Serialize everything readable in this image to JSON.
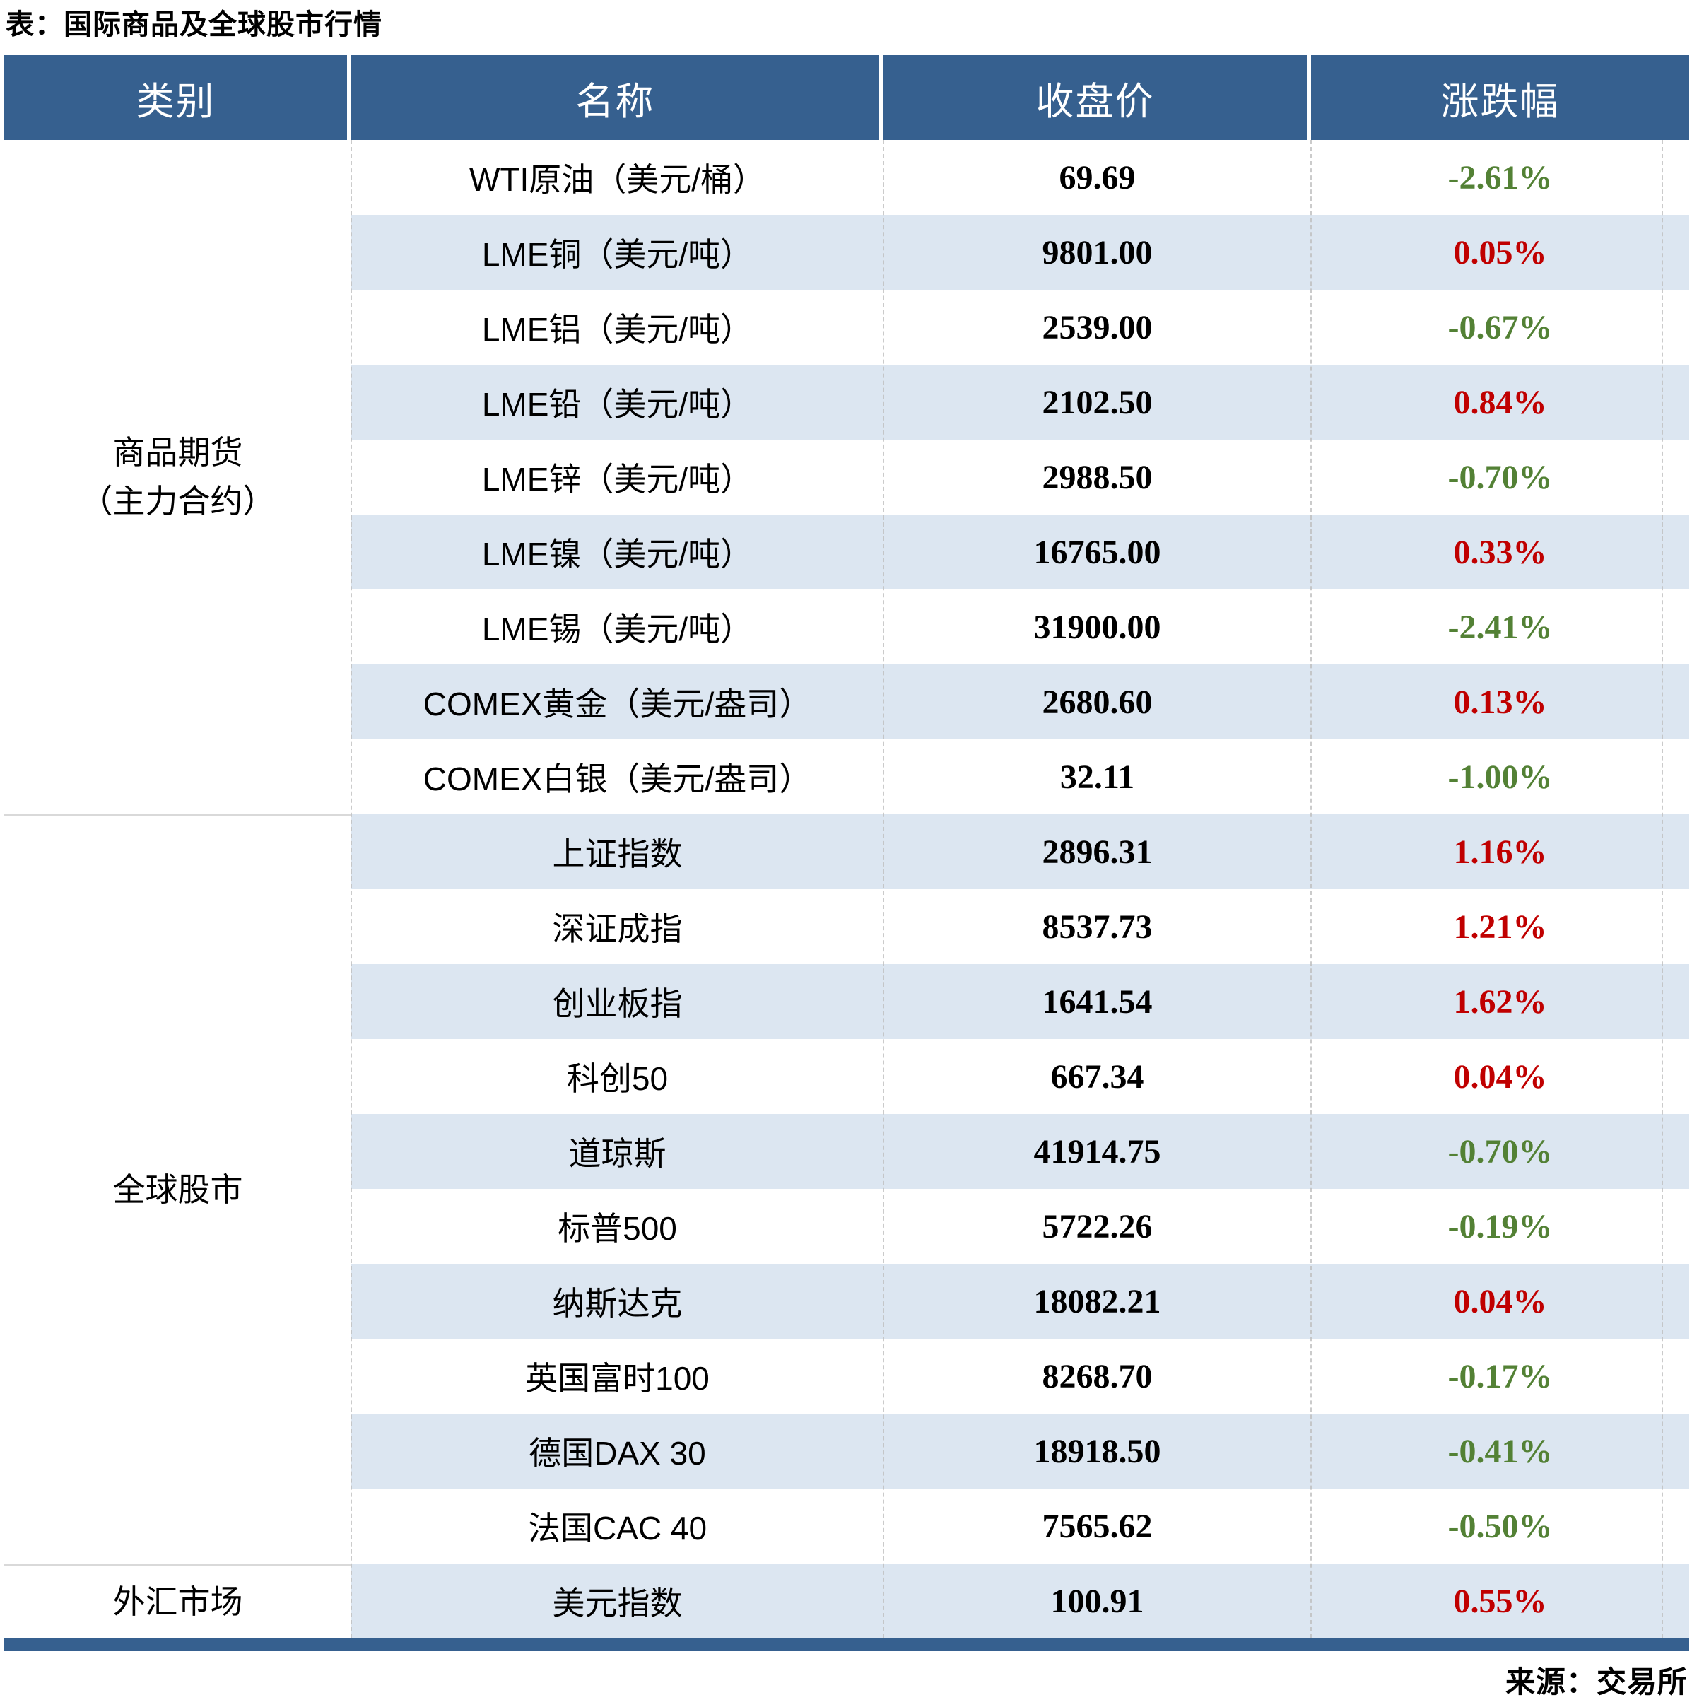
{
  "title": "表：国际商品及全球股市行情",
  "source_note": "来源：交易所",
  "colors": {
    "header_bg": "#36608F",
    "band_bg": "#DCE6F1",
    "up_red": "#C00000",
    "down_green": "#538135",
    "bottom_bar": "#36608F",
    "gridline": "#BFBFBF"
  },
  "table": {
    "headers": {
      "category": "类别",
      "name": "名称",
      "close": "收盘价",
      "change": "涨跌幅"
    },
    "categories": [
      {
        "line1": "商品期货",
        "line2": "（主力合约）",
        "rows": 9
      },
      {
        "line1": "全球股市",
        "line2": "",
        "rows": 10
      },
      {
        "line1": "外汇市场",
        "line2": "",
        "rows": 1
      }
    ],
    "rows": [
      {
        "name": "WTI原油（美元/桶）",
        "close": "69.69",
        "change": "-2.61%",
        "direction": "down"
      },
      {
        "name": "LME铜（美元/吨）",
        "close": "9801.00",
        "change": "0.05%",
        "direction": "up"
      },
      {
        "name": "LME铝（美元/吨）",
        "close": "2539.00",
        "change": "-0.67%",
        "direction": "down"
      },
      {
        "name": "LME铅（美元/吨）",
        "close": "2102.50",
        "change": "0.84%",
        "direction": "up"
      },
      {
        "name": "LME锌（美元/吨）",
        "close": "2988.50",
        "change": "-0.70%",
        "direction": "down"
      },
      {
        "name": "LME镍（美元/吨）",
        "close": "16765.00",
        "change": "0.33%",
        "direction": "up"
      },
      {
        "name": "LME锡（美元/吨）",
        "close": "31900.00",
        "change": "-2.41%",
        "direction": "down"
      },
      {
        "name": "COMEX黄金（美元/盎司）",
        "close": "2680.60",
        "change": "0.13%",
        "direction": "up"
      },
      {
        "name": "COMEX白银（美元/盎司）",
        "close": "32.11",
        "change": "-1.00%",
        "direction": "down"
      },
      {
        "name": "上证指数",
        "close": "2896.31",
        "change": "1.16%",
        "direction": "up"
      },
      {
        "name": "深证成指",
        "close": "8537.73",
        "change": "1.21%",
        "direction": "up"
      },
      {
        "name": "创业板指",
        "close": "1641.54",
        "change": "1.62%",
        "direction": "up"
      },
      {
        "name": "科创50",
        "close": "667.34",
        "change": "0.04%",
        "direction": "up"
      },
      {
        "name": "道琼斯",
        "close": "41914.75",
        "change": "-0.70%",
        "direction": "down"
      },
      {
        "name": "标普500",
        "close": "5722.26",
        "change": "-0.19%",
        "direction": "down"
      },
      {
        "name": "纳斯达克",
        "close": "18082.21",
        "change": "0.04%",
        "direction": "up"
      },
      {
        "name": "英国富时100",
        "close": "8268.70",
        "change": "-0.17%",
        "direction": "down"
      },
      {
        "name": "德国DAX 30",
        "close": "18918.50",
        "change": "-0.41%",
        "direction": "down"
      },
      {
        "name": "法国CAC 40",
        "close": "7565.62",
        "change": "-0.50%",
        "direction": "down"
      },
      {
        "name": "美元指数",
        "close": "100.91",
        "change": "0.55%",
        "direction": "up"
      }
    ]
  }
}
